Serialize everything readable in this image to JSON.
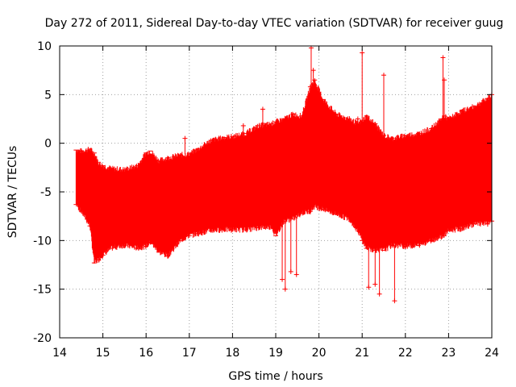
{
  "chart_data": {
    "type": "scatter",
    "title": "Day 272 of 2011, Sidereal Day-to-day VTEC variation (SDTVAR) for receiver guug",
    "xlabel": "GPS time / hours",
    "ylabel": "SDTVAR / TECUs",
    "xlim": [
      14,
      24
    ],
    "ylim": [
      -20,
      10
    ],
    "xticks": [
      "14",
      "15",
      "16",
      "17",
      "18",
      "19",
      "20",
      "21",
      "22",
      "23",
      "24"
    ],
    "yticks": [
      "10",
      "5",
      "0",
      "-5",
      "-10",
      "-15",
      "-20"
    ],
    "grid": true,
    "series": [
      {
        "name": "SDTVAR",
        "color": "#ff0000",
        "style": "error bars (dense vertical range per epoch)",
        "envelope": {
          "x": [
            14.38,
            14.5,
            14.7,
            14.8,
            14.9,
            15.0,
            15.2,
            15.5,
            15.8,
            16.0,
            16.1,
            16.3,
            16.5,
            16.8,
            17.0,
            17.2,
            17.5,
            17.8,
            18.0,
            18.3,
            18.6,
            18.9,
            19.0,
            19.2,
            19.4,
            19.6,
            19.8,
            19.9,
            20.1,
            20.4,
            20.7,
            20.9,
            21.0,
            21.1,
            21.3,
            21.5,
            21.7,
            22.0,
            22.3,
            22.6,
            22.9,
            23.0,
            23.3,
            23.6,
            23.9,
            24.0
          ],
          "upper": [
            -0.7,
            -0.8,
            -0.6,
            -1.0,
            -2.0,
            -2.3,
            -2.6,
            -2.7,
            -2.3,
            -1.0,
            -0.8,
            -1.8,
            -1.5,
            -1.2,
            -1.1,
            -0.6,
            0.3,
            0.6,
            0.7,
            1.0,
            1.8,
            2.0,
            2.2,
            2.5,
            3.0,
            2.8,
            5.8,
            6.5,
            4.5,
            3.0,
            2.5,
            2.0,
            2.3,
            2.8,
            2.0,
            0.8,
            0.5,
            0.8,
            1.0,
            1.5,
            2.8,
            2.5,
            3.3,
            3.8,
            4.6,
            5.0
          ],
          "lower": [
            -6.3,
            -7.0,
            -8.5,
            -12.3,
            -12.0,
            -11.5,
            -10.8,
            -10.5,
            -10.8,
            -10.6,
            -10.2,
            -11.2,
            -11.6,
            -10.0,
            -9.5,
            -9.3,
            -9.0,
            -8.9,
            -8.9,
            -8.9,
            -8.7,
            -8.6,
            -9.5,
            -8.0,
            -7.8,
            -7.2,
            -7.0,
            -6.5,
            -6.8,
            -7.3,
            -7.8,
            -9.0,
            -10.0,
            -10.8,
            -11.0,
            -11.0,
            -10.5,
            -10.6,
            -10.5,
            -10.0,
            -9.5,
            -9.0,
            -8.8,
            -8.3,
            -8.3,
            -8.0
          ]
        },
        "outliers": {
          "x": [
            19.15,
            19.22,
            19.35,
            19.48,
            19.82,
            19.87,
            21.0,
            21.15,
            21.3,
            21.4,
            21.5,
            21.75,
            22.87,
            22.9,
            16.9,
            18.25,
            18.7,
            20.9
          ],
          "y": [
            -14.0,
            -15.0,
            -13.2,
            -13.5,
            9.8,
            7.5,
            9.3,
            -14.8,
            -14.5,
            -15.5,
            7.0,
            -16.2,
            8.8,
            6.5,
            0.5,
            1.8,
            3.5,
            2.5
          ]
        }
      }
    ]
  }
}
